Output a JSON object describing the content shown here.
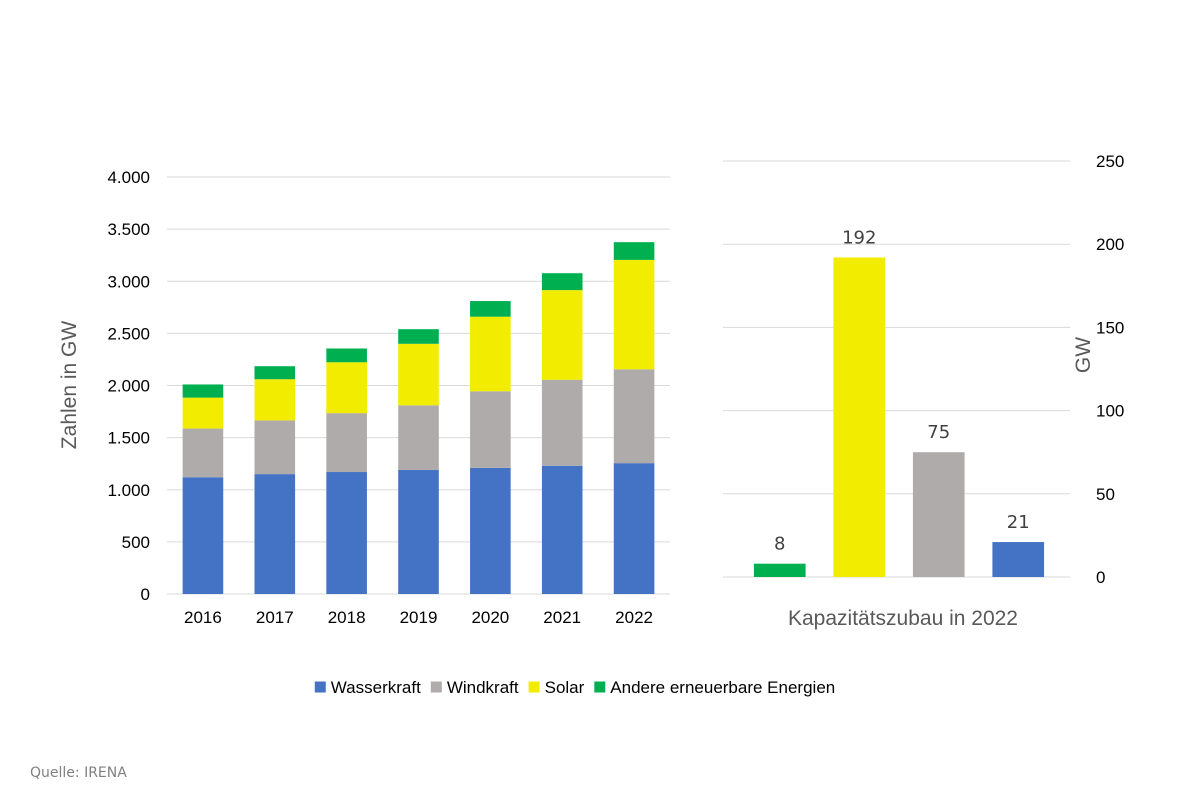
{
  "colors": {
    "Wasserkraft": "#4472c4",
    "Windkraft": "#afabab",
    "Solar": "#f2ed00",
    "Andere": "#00b050",
    "grid": "#d9d9d9"
  },
  "chart_data": [
    {
      "type": "bar",
      "stacked": true,
      "categories": [
        "2016",
        "2017",
        "2018",
        "2019",
        "2020",
        "2021",
        "2022"
      ],
      "series": [
        {
          "name": "Wasserkraft",
          "color_key": "Wasserkraft",
          "values": [
            1120,
            1150,
            1170,
            1190,
            1210,
            1230,
            1255
          ]
        },
        {
          "name": "Windkraft",
          "color_key": "Windkraft",
          "values": [
            467,
            515,
            565,
            620,
            735,
            825,
            900
          ]
        },
        {
          "name": "Solar",
          "color_key": "Solar",
          "values": [
            297,
            395,
            488,
            590,
            715,
            860,
            1050
          ]
        },
        {
          "name": "Andere erneuerbare Energien",
          "color_key": "Andere",
          "values": [
            126,
            125,
            132,
            140,
            150,
            162,
            170
          ]
        }
      ],
      "ylabel": "Zahlen in GW",
      "xlabel": "",
      "ylim": [
        0,
        4000
      ],
      "yticks": [
        0,
        500,
        1000,
        1500,
        2000,
        2500,
        3000,
        3500,
        4000
      ],
      "ytick_labels": [
        "0",
        "500",
        "1.000",
        "1.500",
        "2.000",
        "2.500",
        "3.000",
        "3.500",
        "4.000"
      ],
      "grid": true
    },
    {
      "type": "bar",
      "categories": [
        "Andere erneuerbare Energien",
        "Solar",
        "Windkraft",
        "Wasserkraft"
      ],
      "values": [
        8,
        192,
        75,
        21
      ],
      "data_labels": [
        "8",
        "192",
        "75",
        "21"
      ],
      "color_keys": [
        "Andere",
        "Solar",
        "Windkraft",
        "Wasserkraft"
      ],
      "xlabel": "Kapazitätszubau in 2022",
      "ylabel": "GW",
      "y_axis_side": "right",
      "ylim": [
        0,
        250
      ],
      "yticks": [
        0,
        50,
        100,
        150,
        200,
        250
      ],
      "ytick_labels": [
        "0",
        "50",
        "100",
        "150",
        "200",
        "250"
      ],
      "grid": true
    }
  ],
  "legend": {
    "placement": "bottom-center",
    "items": [
      {
        "label": "Wasserkraft",
        "color_key": "Wasserkraft"
      },
      {
        "label": "Windkraft",
        "color_key": "Windkraft"
      },
      {
        "label": "Solar",
        "color_key": "Solar"
      },
      {
        "label": "Andere erneuerbare Energien",
        "color_key": "Andere"
      }
    ]
  },
  "source": "Quelle: IRENA"
}
